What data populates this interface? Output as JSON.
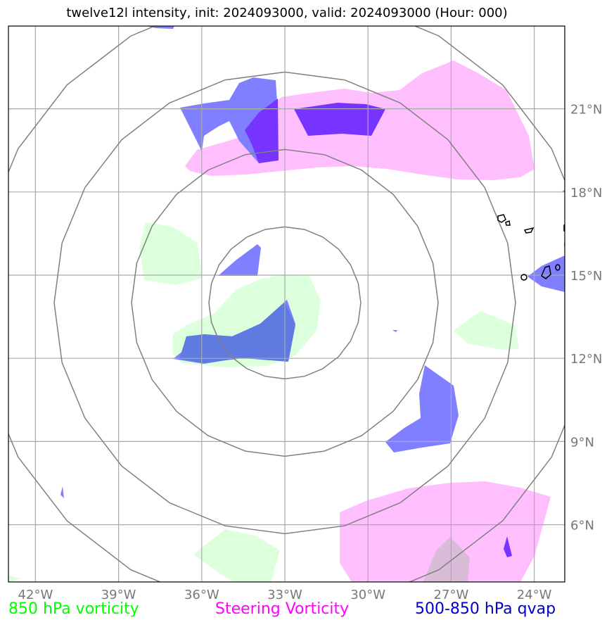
{
  "title": "twelve12l intensity, init: 2024093000, valid: 2024093000 (Hour: 000)",
  "legend": {
    "vort850": "850 hPa vorticity",
    "steering": "Steering Vorticity",
    "qvap": "500-850 hPa qvap"
  },
  "colors": {
    "vort850": "#00ff00",
    "steering": "#ff00ff",
    "qvap": "#0000cc",
    "vort850_fill": "#dcffdc",
    "steering_fill": "#ffbfff",
    "qvap_fill": "#7f7fff",
    "qvap_dense": "#7733ff",
    "rings": "#808080",
    "grid": "#aaaaaa"
  },
  "map": {
    "lon_labels": [
      "42°W",
      "39°W",
      "36°W",
      "33°W",
      "30°W",
      "27°W",
      "24°W"
    ],
    "lat_labels": [
      "6°N",
      "9°N",
      "12°N",
      "15°N",
      "18°N",
      "21°N"
    ],
    "storm_center": {
      "lon": -33,
      "lat": 14
    },
    "range_ring_count": 4
  }
}
